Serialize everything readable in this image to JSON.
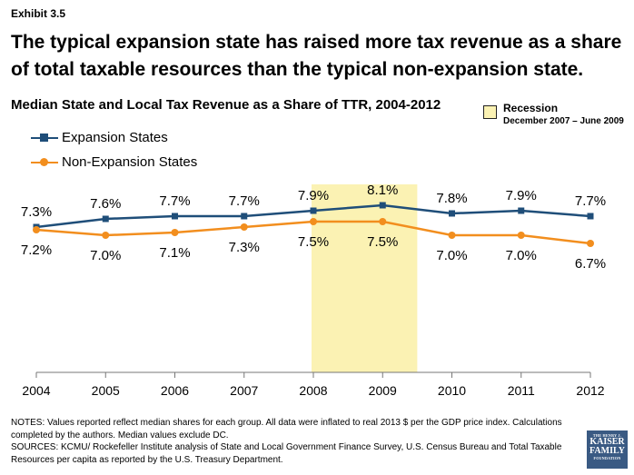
{
  "exhibit_label": "Exhibit 3.5",
  "headline": "The typical expansion state has raised more tax revenue as a share of total taxable resources than the typical non-expansion state.",
  "recession": {
    "label": "Recession",
    "dates": "December 2007 – June 2009",
    "color": "#fbf2b3"
  },
  "chart_data": {
    "type": "line",
    "title": "Median State and Local Tax Revenue as a Share of TTR, 2004-2012",
    "categories": [
      "2004",
      "2005",
      "2006",
      "2007",
      "2008",
      "2009",
      "2010",
      "2011",
      "2012"
    ],
    "series": [
      {
        "name": "Expansion States",
        "color": "#1f4e79",
        "marker": "square",
        "values": [
          7.3,
          7.6,
          7.7,
          7.7,
          7.9,
          8.1,
          7.8,
          7.9,
          7.7
        ],
        "labels": [
          "7.3%",
          "7.6%",
          "7.7%",
          "7.7%",
          "7.9%",
          "8.1%",
          "7.8%",
          "7.9%",
          "7.7%"
        ],
        "label_position": "above"
      },
      {
        "name": "Non-Expansion States",
        "color": "#f28e1e",
        "marker": "circle",
        "values": [
          7.2,
          7.0,
          7.1,
          7.3,
          7.5,
          7.5,
          7.0,
          7.0,
          6.7
        ],
        "labels": [
          "7.2%",
          "7.0%",
          "7.1%",
          "7.3%",
          "7.5%",
          "7.5%",
          "7.0%",
          "7.0%",
          "6.7%"
        ],
        "label_position": "below"
      }
    ],
    "recession_shading": [
      "2008",
      "2009"
    ],
    "legend_placement": "top-left",
    "grid": false
  },
  "notes": [
    "NOTES: Values reported reflect median shares for each group. All data were inflated to real 2013 $ per the GDP price index. Calculations completed by the authors. Median values exclude DC.",
    "SOURCES: KCMU/ Rockefeller Institute analysis of State and Local Government Finance Survey, U.S. Census Bureau and Total Taxable Resources per capita as reported by the U.S. Treasury Department."
  ],
  "logo": {
    "line1": "THE HENRY J.",
    "line2": "KAISER",
    "line3": "FAMILY",
    "line4": "FOUNDATION"
  }
}
